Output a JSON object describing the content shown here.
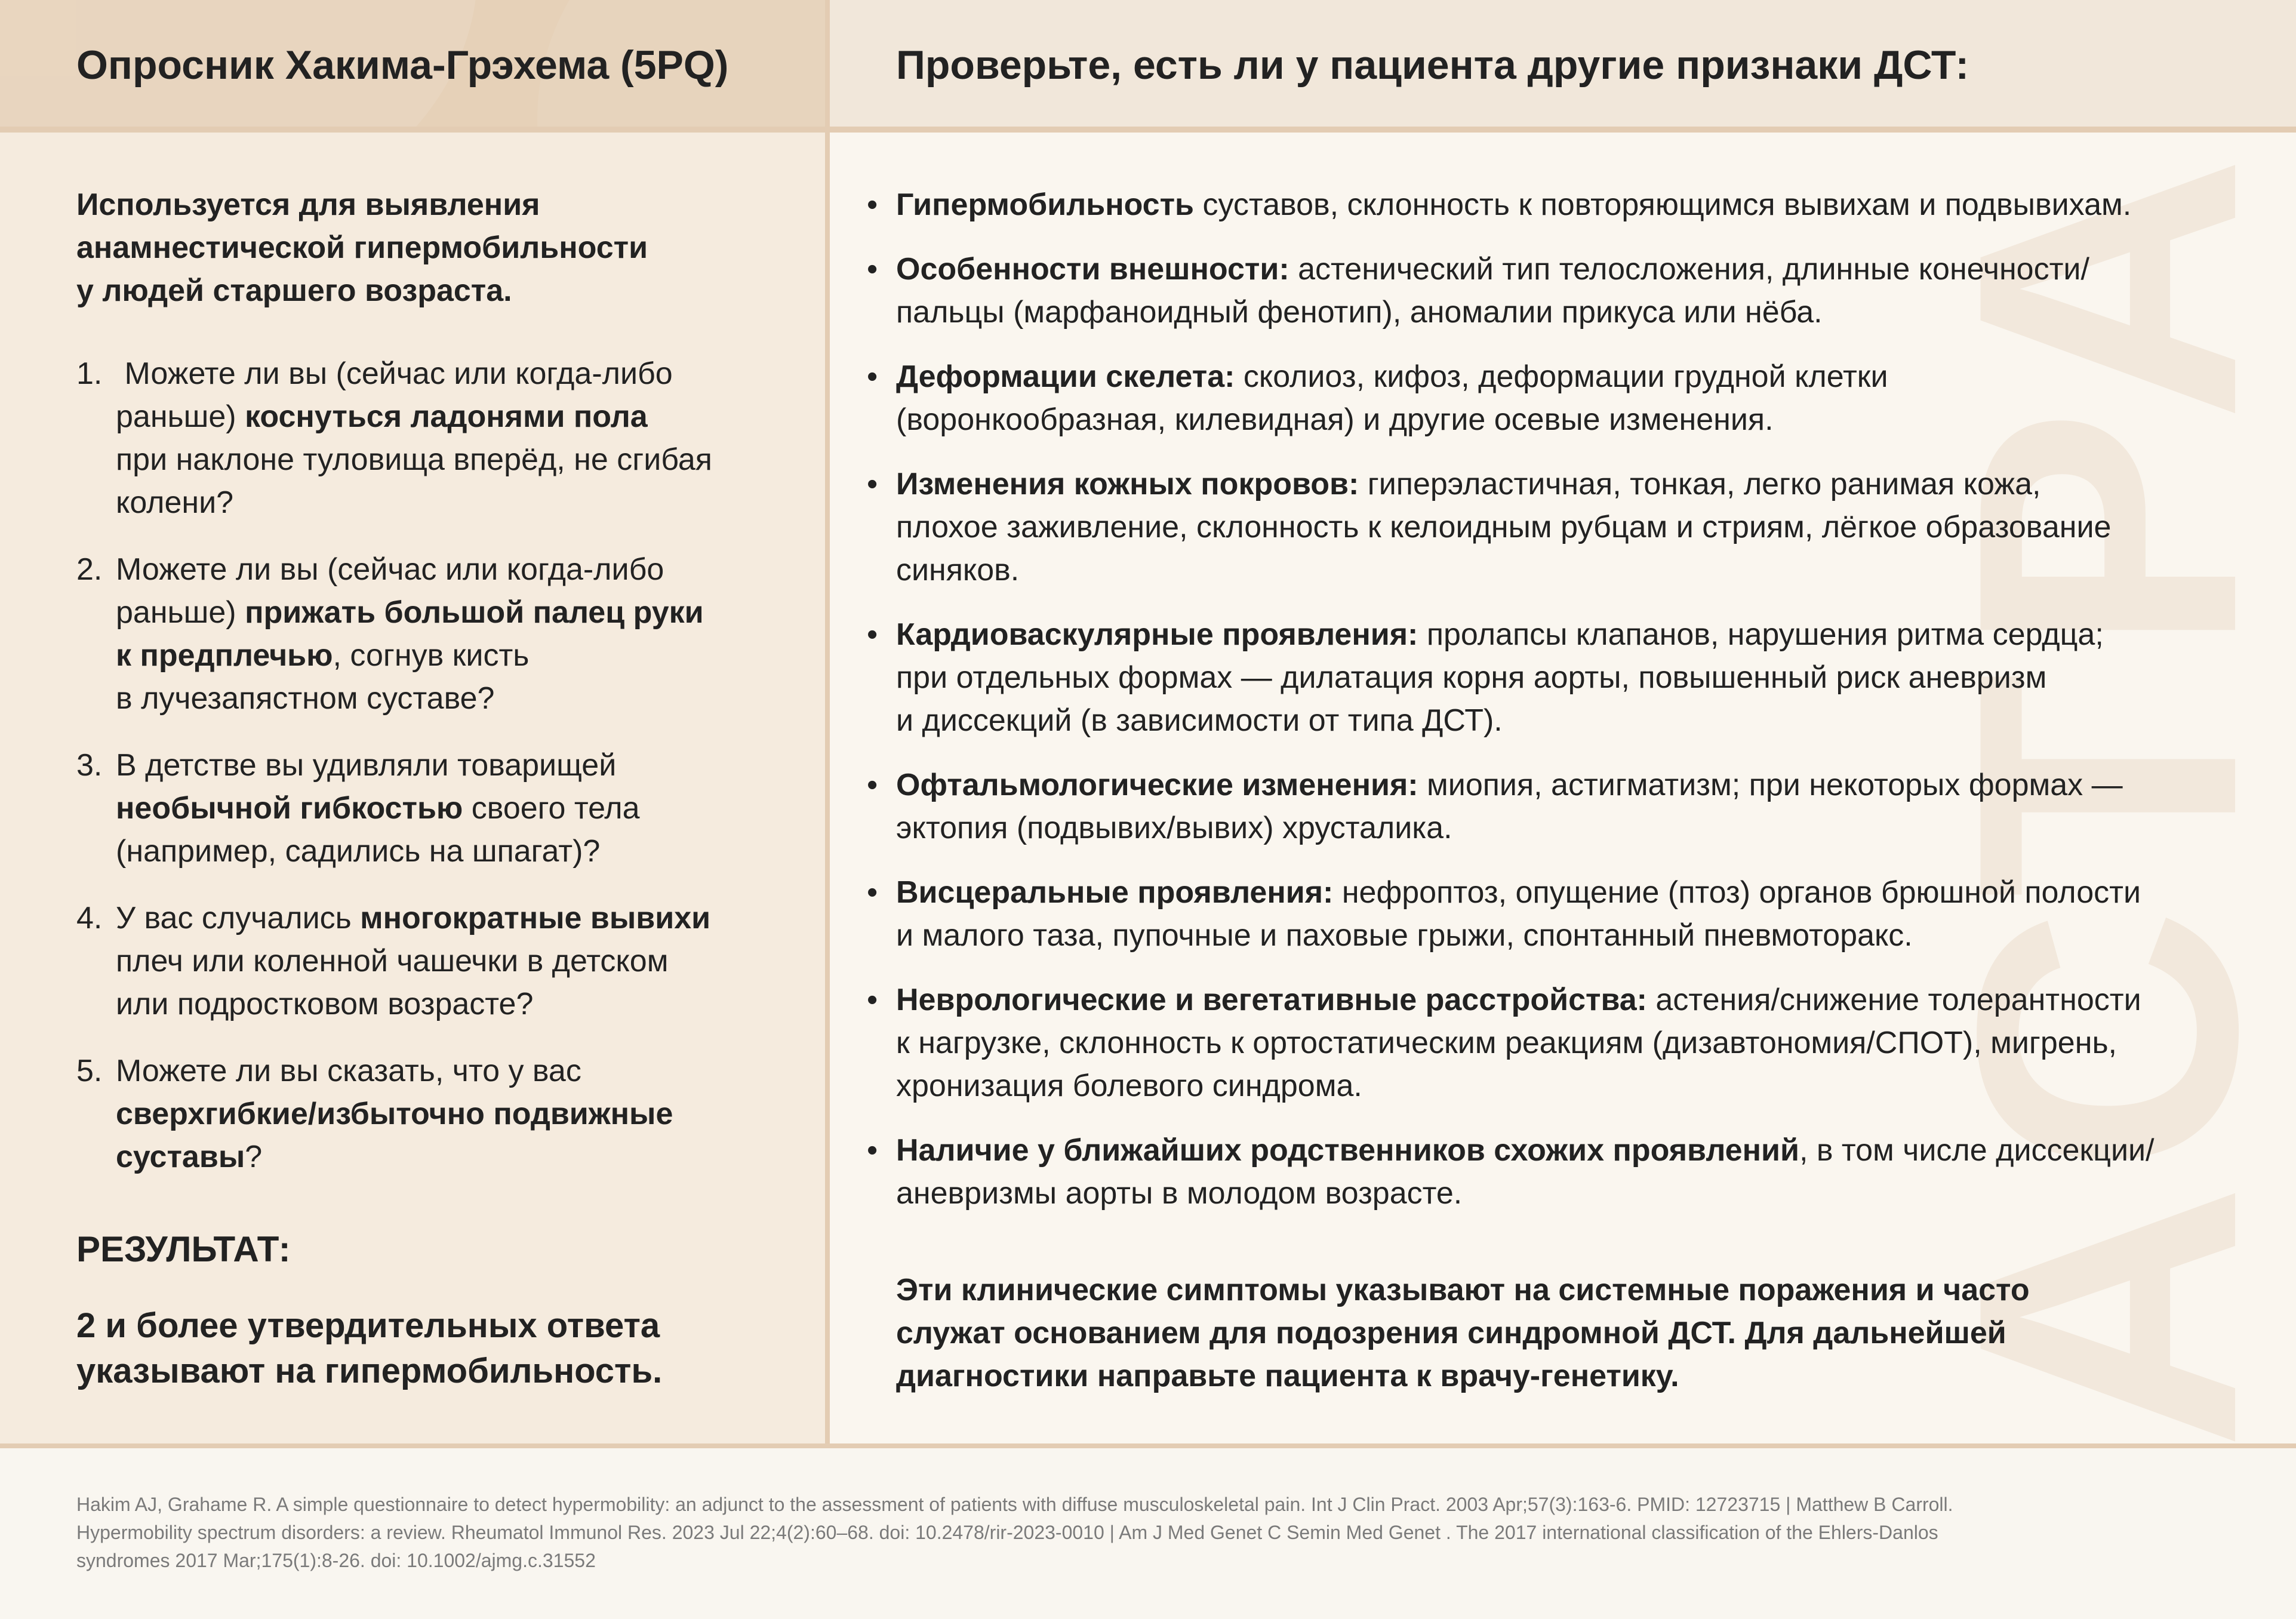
{
  "left": {
    "title": "Опросник Хакима-Грэхема (5PQ)",
    "intro": [
      "Используется для выявления",
      "анамнестической гипермобильности",
      "у людей старшего возраста."
    ],
    "questions": [
      {
        "num": "1.",
        "lines": [
          [
            [
              0,
              " Можете ли вы (сейчас или когда-либо"
            ]
          ],
          [
            [
              0,
              "раньше) "
            ],
            [
              1,
              "коснуться ладонями пола"
            ]
          ],
          [
            [
              0,
              "при наклоне туловища вперёд, не сгибая"
            ]
          ],
          [
            [
              0,
              "колени?"
            ]
          ]
        ]
      },
      {
        "num": "2.",
        "lines": [
          [
            [
              0,
              "Можете ли вы (сейчас или когда-либо"
            ]
          ],
          [
            [
              0,
              "раньше) "
            ],
            [
              1,
              "прижать большой палец руки"
            ]
          ],
          [
            [
              1,
              "к предплечью"
            ],
            [
              0,
              ", согнув кисть"
            ]
          ],
          [
            [
              0,
              "в лучезапястном суставе?"
            ]
          ]
        ]
      },
      {
        "num": "3.",
        "lines": [
          [
            [
              0,
              "В детстве вы удивляли товарищей"
            ]
          ],
          [
            [
              1,
              "необычной гибкостью"
            ],
            [
              0,
              " своего тела"
            ]
          ],
          [
            [
              0,
              "(например, садились на шпагат)?"
            ]
          ]
        ]
      },
      {
        "num": "4.",
        "lines": [
          [
            [
              0,
              "У вас случались "
            ],
            [
              1,
              "многократные вывихи"
            ]
          ],
          [
            [
              0,
              "плеч или коленной чашечки в детском"
            ]
          ],
          [
            [
              0,
              "или подростковом возрасте?"
            ]
          ]
        ]
      },
      {
        "num": "5.",
        "lines": [
          [
            [
              0,
              "Можете ли вы сказать, что у вас"
            ]
          ],
          [
            [
              1,
              "сверхгибкие/избыточно подвижные"
            ]
          ],
          [
            [
              1,
              "суставы"
            ],
            [
              0,
              "?"
            ]
          ]
        ]
      }
    ],
    "result_heading": "РЕЗУЛЬТАТ:",
    "result_text": [
      "2 и более утвердительных ответа",
      "указывают на гипермобильность."
    ]
  },
  "right": {
    "title": "Проверьте, есть ли у пациента другие признаки ДСТ:",
    "bullet": "•",
    "items": [
      [
        [
          [
            1,
            "Гипермобильность"
          ],
          [
            0,
            " суставов, склонность к повторяющимся вывихам и подвывихам."
          ]
        ]
      ],
      [
        [
          [
            1,
            "Особенности внешности:"
          ],
          [
            0,
            " астенический тип телосложения, длинные конечности/"
          ]
        ],
        [
          [
            0,
            "пальцы (марфаноидный фенотип), аномалии прикуса или нёба."
          ]
        ]
      ],
      [
        [
          [
            1,
            "Деформации скелета:"
          ],
          [
            0,
            " сколиоз, кифоз, деформации грудной клетки"
          ]
        ],
        [
          [
            0,
            "(воронкообразная, килевидная) и другие осевые изменения."
          ]
        ]
      ],
      [
        [
          [
            1,
            "Изменения кожных покровов:"
          ],
          [
            0,
            " гиперэластичная, тонкая, легко ранимая кожа,"
          ]
        ],
        [
          [
            0,
            "плохое заживление, склонность к келоидным рубцам и стриям, лёгкое образование"
          ]
        ],
        [
          [
            0,
            "синяков."
          ]
        ]
      ],
      [
        [
          [
            1,
            "Кардиоваскулярные проявления:"
          ],
          [
            0,
            " пролапсы клапанов, нарушения ритма сердца;"
          ]
        ],
        [
          [
            0,
            "при отдельных формах — дилатация корня аорты, повышенный риск аневризм"
          ]
        ],
        [
          [
            0,
            "и диссекций (в зависимости от типа ДСТ)."
          ]
        ]
      ],
      [
        [
          [
            1,
            "Офтальмологические изменения:"
          ],
          [
            0,
            " миопия, астигматизм; при некоторых формах —"
          ]
        ],
        [
          [
            0,
            "эктопия (подвывих/вывих) хрусталика."
          ]
        ]
      ],
      [
        [
          [
            1,
            "Висцеральные проявления:"
          ],
          [
            0,
            " нефроптоз, опущение (птоз) органов брюшной полости"
          ]
        ],
        [
          [
            0,
            "и малого таза, пупочные и паховые грыжи, спонтанный пневмоторакс."
          ]
        ]
      ],
      [
        [
          [
            1,
            "Неврологические и вегетативные расстройства:"
          ],
          [
            0,
            " астения/снижение толерантности"
          ]
        ],
        [
          [
            0,
            "к нагрузке, склонность к ортостатическим реакциям (дизавтономия/СПОТ), мигрень,"
          ]
        ],
        [
          [
            0,
            "хронизация болевого синдрома."
          ]
        ]
      ],
      [
        [
          [
            1,
            "Наличие у ближайших родственников схожих проявлений"
          ],
          [
            0,
            ", в том числе диссекции/"
          ]
        ],
        [
          [
            0,
            "аневризмы аорты в молодом возрасте."
          ]
        ]
      ]
    ],
    "conclusion": [
      "Эти клинические симптомы указывают на системные поражения и часто",
      "служат основанием для подозрения синдромной ДСТ. Для дальнейшей",
      "диагностики направьте пациента к врачу-генетику."
    ],
    "watermark": "АСТРА"
  },
  "footer": {
    "references": [
      "Hakim AJ, Grahame R. A simple questionnaire to detect hypermobility: an adjunct to the assessment of patients with diffuse musculoskeletal pain. Int J Clin Pract. 2003 Apr;57(3):163-6. PMID: 12723715 | Matthew B Carroll.",
      "Hypermobility spectrum disorders: a review. Rheumatol Immunol Res. 2023 Jul 22;4(2):60–68. doi: 10.2478/rir-2023-0010 | Am J Med Genet C Semin Med Genet . The 2017 international classification of the Ehlers-Danlos",
      "syndromes 2017 Mar;175(1):8-26. doi: 10.1002/ajmg.c.31552"
    ]
  },
  "colors": {
    "header_left": "#e6d1b8",
    "header_right": "#f1e7da",
    "body_left": "#f5ebde",
    "body_right": "#faf6ef",
    "divider": "#e3ccb3",
    "text": "#222222",
    "footer_text": "#7a7a7a"
  }
}
